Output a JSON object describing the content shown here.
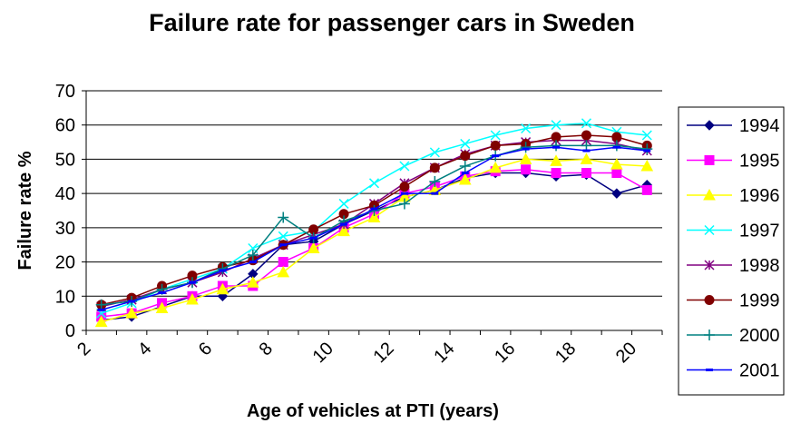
{
  "chart_data": {
    "type": "line",
    "title": "Failure rate for passenger cars in Sweden",
    "xlabel": "Age of vehicles at PTI (years)",
    "ylabel": "Failure rate %",
    "xlim": [
      2,
      21
    ],
    "ylim": [
      0,
      70
    ],
    "x_ticks": [
      2,
      4,
      6,
      8,
      10,
      12,
      14,
      16,
      18,
      20
    ],
    "y_ticks": [
      0,
      10,
      20,
      30,
      40,
      50,
      60,
      70
    ],
    "grid": "horizontal",
    "legend_position": "right",
    "x": [
      2.5,
      3.5,
      4.5,
      5.5,
      6.5,
      7.5,
      8.5,
      9.5,
      10.5,
      11.5,
      12.5,
      13.5,
      14.5,
      15.5,
      16.5,
      17.5,
      18.5,
      19.5,
      20.5
    ],
    "series": [
      {
        "name": "1994",
        "color": "#000080",
        "marker": "diamond",
        "values": [
          3,
          4,
          7,
          10,
          10,
          16.5,
          25,
          26,
          31,
          35,
          39,
          41,
          44.5,
          46,
          46,
          45,
          45.5,
          40,
          42.5
        ]
      },
      {
        "name": "1995",
        "color": "#FF00FF",
        "marker": "square",
        "values": [
          4,
          5,
          8,
          10,
          13,
          13,
          20,
          24,
          30,
          34,
          40,
          42,
          45,
          46.5,
          47,
          46,
          46,
          46,
          41
        ]
      },
      {
        "name": "1996",
        "color": "#FFFF00",
        "marker": "triangle",
        "values": [
          2.5,
          5,
          6.5,
          9,
          12,
          14,
          17,
          24,
          29,
          33,
          39,
          41,
          44,
          47.5,
          50,
          49.5,
          50,
          48.5,
          48
        ]
      },
      {
        "name": "1997",
        "color": "#00FFFF",
        "marker": "x",
        "values": [
          5,
          8,
          12,
          15,
          18,
          24,
          27.5,
          29,
          37,
          43,
          48,
          52,
          54.5,
          57,
          59,
          60,
          60.5,
          58,
          57
        ]
      },
      {
        "name": "1998",
        "color": "#800080",
        "marker": "star",
        "values": [
          7,
          9,
          12,
          14,
          17,
          21,
          25,
          28,
          31,
          37,
          43,
          47.5,
          51.5,
          54,
          55,
          55.5,
          55.5,
          54.5,
          52.5
        ]
      },
      {
        "name": "1999",
        "color": "#800000",
        "marker": "circle",
        "values": [
          7.5,
          9.5,
          13,
          16,
          18.5,
          20.5,
          25,
          29.5,
          34,
          36.5,
          42,
          47.5,
          51,
          54,
          54.5,
          56.5,
          57,
          56.5,
          54
        ]
      },
      {
        "name": "2000",
        "color": "#008080",
        "marker": "plus",
        "values": [
          7.5,
          8.5,
          12,
          14,
          18,
          22,
          33,
          27,
          32,
          35,
          37,
          43.5,
          48,
          51,
          53.5,
          54,
          54,
          54,
          53
        ]
      },
      {
        "name": "2001",
        "color": "#0000FF",
        "marker": "dash",
        "values": [
          6,
          8.5,
          11,
          14,
          17.5,
          20,
          25,
          27,
          31,
          35.5,
          40,
          40,
          46,
          51,
          53,
          53.5,
          52.5,
          53.5,
          52.5
        ]
      }
    ]
  }
}
